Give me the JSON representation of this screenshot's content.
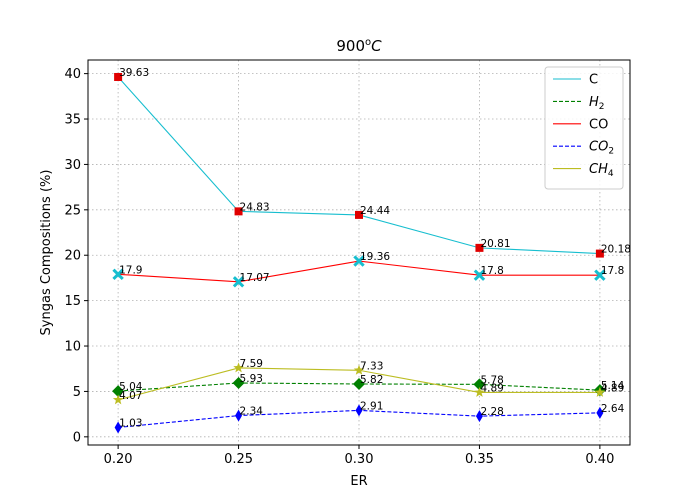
{
  "chart_data": {
    "type": "line",
    "title": "900",
    "title_superscript": "o",
    "title_suffix": "C",
    "xlabel": "ER",
    "ylabel": "Syngas Compositions (%)",
    "x": [
      0.2,
      0.25,
      0.3,
      0.35,
      0.4
    ],
    "x_tick_labels": [
      "0.20",
      "0.25",
      "0.30",
      "0.35",
      "0.40"
    ],
    "xlim": [
      0.1875,
      0.4125
    ],
    "ylim": [
      -0.9,
      41.5
    ],
    "y_ticks": [
      0,
      5,
      10,
      15,
      20,
      25,
      30,
      35,
      40
    ],
    "grid": true,
    "legend_position": "top-right",
    "series": [
      {
        "name": "C",
        "label_main": "C",
        "label_sub": "",
        "color": "#17becf",
        "dash": "solid",
        "marker": "x",
        "marker_color": "#17becf",
        "values": [
          39.63,
          24.83,
          24.44,
          20.81,
          20.18
        ],
        "value_labels": [
          "39.63",
          "24.83",
          "24.44",
          "20.81",
          "20.18"
        ],
        "markers_at": [
          17.9,
          17.07,
          19.36,
          17.8,
          17.8
        ]
      },
      {
        "name": "H2",
        "label_main": "H",
        "label_sub": "2",
        "color": "#008000",
        "dash": "dashed",
        "marker": "diamond",
        "marker_color": "#008000",
        "values": [
          5.04,
          5.93,
          5.82,
          5.78,
          5.14
        ],
        "value_labels": [
          "5.04",
          "5.93",
          "5.82",
          "5.78",
          "5.14"
        ]
      },
      {
        "name": "CO",
        "label_main": "CO",
        "label_sub": "",
        "color": "#ff0000",
        "dash": "solid",
        "marker": "square",
        "marker_color": "#e00000",
        "values": [
          17.9,
          17.07,
          19.36,
          17.8,
          17.8
        ],
        "value_labels": [
          "17.9",
          "17.07",
          "19.36",
          "17.8",
          "17.8"
        ],
        "markers_at": [
          39.63,
          24.83,
          24.44,
          20.81,
          20.18
        ]
      },
      {
        "name": "CO2",
        "label_main": "CO",
        "label_sub": "2",
        "color": "#0000ff",
        "dash": "dashed",
        "marker": "thin-diamond",
        "marker_color": "#0000ff",
        "values": [
          1.03,
          2.34,
          2.91,
          2.28,
          2.64
        ],
        "value_labels": [
          "1.03",
          "2.34",
          "2.91",
          "2.28",
          "2.64"
        ]
      },
      {
        "name": "CH4",
        "label_main": "CH",
        "label_sub": "4",
        "color": "#bcbd22",
        "dash": "solid",
        "marker": "star",
        "marker_color": "#bcbd22",
        "values": [
          4.07,
          7.59,
          7.33,
          4.89,
          4.89
        ],
        "value_labels": [
          "4.07",
          "7.59",
          "7.33",
          "4.89",
          "4.89"
        ]
      }
    ]
  }
}
